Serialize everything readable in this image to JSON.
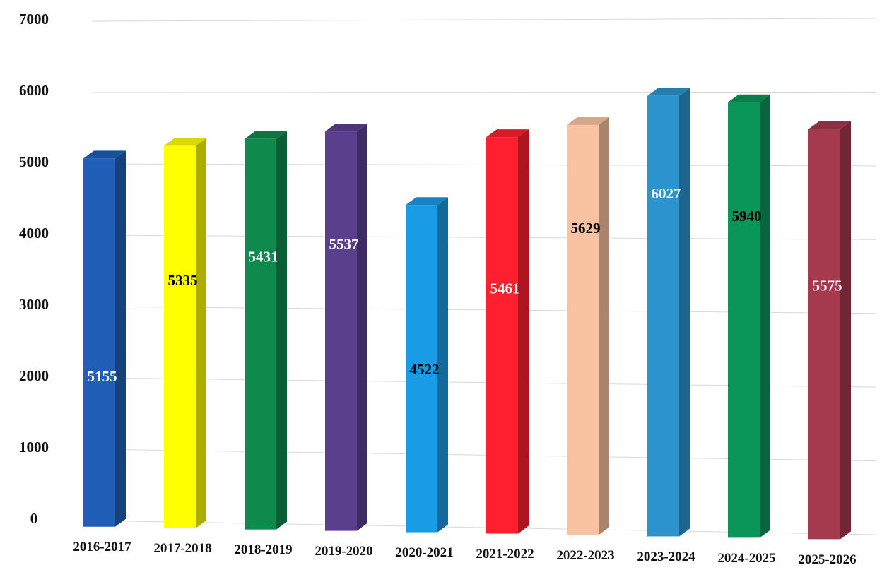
{
  "chart_data": {
    "type": "bar",
    "title": "",
    "xlabel": "",
    "ylabel": "",
    "categories": [
      "2016-2017",
      "2017-2018",
      "2018-2019",
      "2019-2020",
      "2020-2021",
      "2021-2022",
      "2022-2023",
      "2023-2024",
      "2024-2025",
      "2025-2026"
    ],
    "values": [
      5155,
      5335,
      5431,
      5537,
      4522,
      5461,
      5629,
      6027,
      5940,
      5575
    ],
    "ylim": [
      0,
      7000
    ],
    "yticks": [
      0,
      1000,
      2000,
      3000,
      4000,
      5000,
      6000,
      7000
    ],
    "grid": true,
    "legend": "none",
    "style": "3d-columns",
    "colors": [
      "#1f5fb8",
      "#ffff00",
      "#0f8a4e",
      "#5b3f8f",
      "#1a9be6",
      "#ff1f2e",
      "#f9c3a2",
      "#2b94cf",
      "#0b9659",
      "#a53a4e"
    ],
    "label_colors": [
      "#ffffff",
      "#000000",
      "#ffffff",
      "#ffffff",
      "#000000",
      "#ffffff",
      "#000000",
      "#ffffff",
      "#000000",
      "#ffffff"
    ]
  }
}
